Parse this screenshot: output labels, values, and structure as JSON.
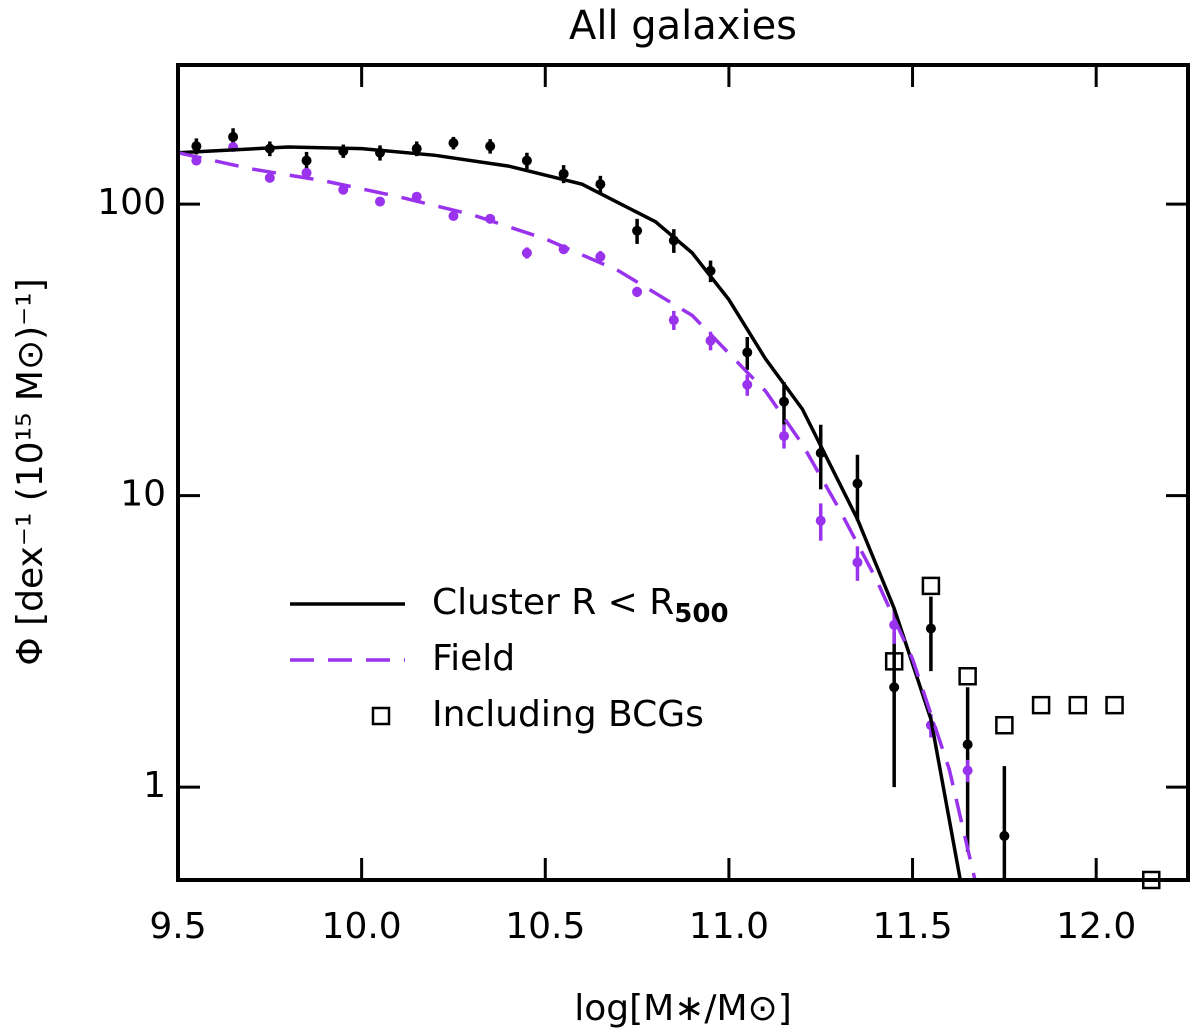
{
  "chart_data": {
    "type": "line",
    "title": "All galaxies",
    "xlabel": "log[M∗/M⊙]",
    "ylabel": "Φ [dex⁻¹ (10¹⁵ M⊙)⁻¹]",
    "xlim": [
      9.5,
      12.25
    ],
    "ylim": [
      0.48,
      300
    ],
    "log_y": true,
    "xticks": [
      9.5,
      {
        "value": 10,
        "label": "10.0"
      },
      10.5,
      {
        "value": 11,
        "label": "11.0"
      },
      11.5,
      {
        "value": 12,
        "label": "12.0"
      }
    ],
    "yticks": [
      1,
      10,
      100
    ],
    "legend": "lower left",
    "series": [
      {
        "name": "Cluster R < R",
        "name_sub": "500",
        "color": "#000000",
        "style": "solid",
        "x": [
          9.5,
          9.8,
          10.0,
          10.2,
          10.4,
          10.6,
          10.8,
          10.9,
          11.0,
          11.1,
          11.2,
          11.35,
          11.45,
          11.55,
          11.63
        ],
        "values": [
          150,
          157,
          155,
          147,
          135,
          117,
          87,
          68,
          47,
          29.4,
          19.8,
          8.3,
          4.1,
          1.71,
          0.48
        ]
      },
      {
        "name": "Field",
        "color": "#9933ee",
        "style": "dashed",
        "x": [
          9.5,
          9.7,
          9.9,
          10.1,
          10.3,
          10.5,
          10.7,
          10.9,
          11.1,
          11.2,
          11.3,
          11.4,
          11.5,
          11.6,
          11.67
        ],
        "values": [
          150,
          132,
          120,
          106,
          92,
          76,
          59,
          41.5,
          22.8,
          15,
          9,
          5.2,
          2.75,
          1.15,
          0.48
        ]
      },
      {
        "name": "Including BCGs",
        "color": "#000000",
        "style": "square",
        "x": [
          11.45,
          11.55,
          11.65,
          11.75,
          11.85,
          11.95,
          12.05,
          12.15
        ],
        "values": [
          2.7,
          4.9,
          2.4,
          1.63,
          1.91,
          1.91,
          1.91,
          0.48
        ]
      }
    ],
    "points": [
      {
        "color": "#000000",
        "x": [
          9.55,
          9.65,
          9.75,
          9.85,
          9.95,
          10.05,
          10.15,
          10.25,
          10.35,
          10.45,
          10.55,
          10.65,
          10.75,
          10.85,
          10.95,
          11.05,
          11.15,
          11.25,
          11.35,
          11.45,
          11.55,
          11.65,
          11.75
        ],
        "values": [
          158,
          170,
          155,
          141,
          152,
          150,
          155,
          162,
          158,
          141,
          127,
          117,
          81,
          75,
          59,
          31,
          21,
          14,
          11,
          2.2,
          3.5,
          1.4,
          0.68
        ],
        "errors": [
          10,
          12,
          9,
          10,
          8,
          9,
          9,
          8,
          9,
          9,
          9,
          8,
          8,
          7,
          5,
          4,
          3.5,
          3.5,
          2.8,
          1.2,
          1,
          0.8,
          0.5
        ]
      },
      {
        "color": "#9933ee",
        "x": [
          9.55,
          9.65,
          9.75,
          9.85,
          9.95,
          10.05,
          10.15,
          10.25,
          10.35,
          10.45,
          10.55,
          10.65,
          10.75,
          10.85,
          10.95,
          11.05,
          11.15,
          11.25,
          11.35,
          11.45,
          11.55,
          11.65
        ],
        "values": [
          141,
          157,
          123,
          128,
          112,
          102,
          106,
          91,
          89,
          68,
          70,
          66,
          50,
          40,
          34,
          24,
          16,
          8.2,
          5.9,
          3.6,
          1.63,
          1.14
        ],
        "errors": [
          3,
          3,
          3,
          3,
          2,
          2,
          2,
          2,
          3,
          3,
          2,
          3,
          2,
          3,
          2.5,
          2,
          1.5,
          1.2,
          0.8,
          0.5,
          0.15,
          0.1
        ]
      }
    ]
  }
}
